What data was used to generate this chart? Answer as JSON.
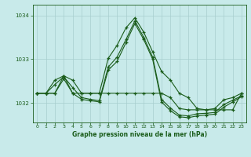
{
  "title": "Graphe pression niveau de la mer (hPa)",
  "bg_color": "#c8eaea",
  "line_color": "#1a5c1a",
  "grid_color": "#a8cece",
  "text_color": "#1a5c1a",
  "xlim": [
    -0.5,
    23.5
  ],
  "ylim": [
    1031.55,
    1034.25
  ],
  "yticks": [
    1032,
    1033,
    1034
  ],
  "xticks": [
    0,
    1,
    2,
    3,
    4,
    5,
    6,
    7,
    8,
    9,
    10,
    11,
    12,
    13,
    14,
    15,
    16,
    17,
    18,
    19,
    20,
    21,
    22,
    23
  ],
  "series": [
    [
      1032.22,
      1032.22,
      1032.52,
      1032.62,
      1032.52,
      1032.22,
      1032.22,
      1032.22,
      1033.02,
      1033.32,
      1033.72,
      1033.95,
      1033.62,
      1033.17,
      1032.72,
      1032.52,
      1032.22,
      1032.12,
      1031.87,
      1031.84,
      1031.87,
      1032.07,
      1032.12,
      1032.22
    ],
    [
      1032.22,
      1032.22,
      1032.22,
      1032.62,
      1032.22,
      1032.22,
      1032.22,
      1032.22,
      1032.22,
      1032.22,
      1032.22,
      1032.22,
      1032.22,
      1032.22,
      1032.22,
      1032.12,
      1031.87,
      1031.84,
      1031.84,
      1031.84,
      1031.84,
      1031.84,
      1031.84,
      1032.22
    ],
    [
      1032.22,
      1032.22,
      1032.42,
      1032.6,
      1032.35,
      1032.12,
      1032.08,
      1032.05,
      1032.82,
      1033.05,
      1033.45,
      1033.88,
      1033.5,
      1033.05,
      1032.08,
      1031.88,
      1031.72,
      1031.7,
      1031.75,
      1031.76,
      1031.78,
      1031.96,
      1032.06,
      1032.16
    ],
    [
      1032.22,
      1032.22,
      1032.22,
      1032.55,
      1032.22,
      1032.08,
      1032.05,
      1032.02,
      1032.75,
      1032.95,
      1033.38,
      1033.82,
      1033.45,
      1033.0,
      1032.02,
      1031.82,
      1031.68,
      1031.66,
      1031.7,
      1031.72,
      1031.74,
      1031.9,
      1032.02,
      1032.14
    ]
  ]
}
